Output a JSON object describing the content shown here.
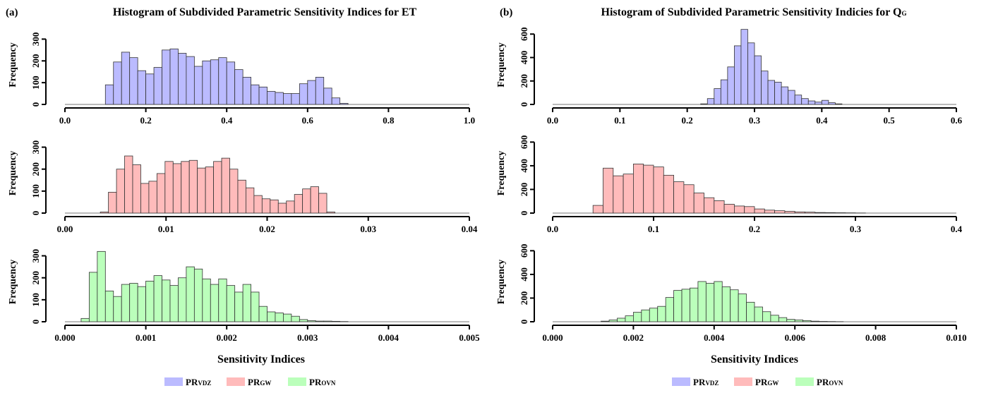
{
  "colors": {
    "series": [
      "#bbbbff",
      "#ffbbbb",
      "#bbffbb"
    ],
    "bar_border": "#333333",
    "axis": "#000000"
  },
  "legend": [
    {
      "main": "PR",
      "sub": "VDZ"
    },
    {
      "main": "PR",
      "sub": "GW"
    },
    {
      "main": "PR",
      "sub": "OVN"
    }
  ],
  "chart_data": [
    {
      "panel": "a",
      "panel_label": "(a)",
      "title": "Histogram of Subdivided Parametric Sensitivity Indices for ET",
      "title_sub": "",
      "xlabel": "Sensitivity Indices",
      "ylabel": "Frequency",
      "type": "bar",
      "subplots": [
        {
          "series": "PRVDZ",
          "xlim": [
            0,
            1.0
          ],
          "ylim": [
            0,
            350
          ],
          "xticks": [
            "0.0",
            "0.2",
            "0.4",
            "0.6",
            "0.8",
            "1.0"
          ],
          "yticks": [
            "0",
            "100",
            "200",
            "300"
          ],
          "bin_start": 0.1,
          "bin_width": 0.02,
          "values": [
            90,
            195,
            240,
            215,
            155,
            140,
            170,
            250,
            255,
            235,
            220,
            175,
            200,
            205,
            215,
            195,
            160,
            125,
            90,
            80,
            60,
            55,
            50,
            50,
            95,
            110,
            125,
            75,
            30,
            5
          ]
        },
        {
          "series": "PRGW",
          "xlim": [
            0,
            0.04
          ],
          "ylim": [
            0,
            350
          ],
          "xticks": [
            "0.00",
            "0.01",
            "0.02",
            "0.03",
            "0.04"
          ],
          "yticks": [
            "0",
            "100",
            "200",
            "300"
          ],
          "bin_start": 0.0035,
          "bin_width": 0.0008,
          "values": [
            5,
            95,
            200,
            260,
            220,
            135,
            145,
            180,
            235,
            225,
            235,
            240,
            205,
            210,
            235,
            250,
            200,
            150,
            115,
            80,
            65,
            60,
            45,
            55,
            85,
            110,
            120,
            90,
            5
          ]
        },
        {
          "series": "PROVN",
          "xlim": [
            0,
            0.005
          ],
          "ylim": [
            0,
            350
          ],
          "xticks": [
            "0.000",
            "0.001",
            "0.002",
            "0.003",
            "0.004",
            "0.005"
          ],
          "yticks": [
            "0",
            "100",
            "200",
            "300"
          ],
          "bin_start": 0.0002,
          "bin_width": 0.0001,
          "values": [
            15,
            225,
            320,
            140,
            115,
            170,
            175,
            160,
            185,
            210,
            190,
            165,
            200,
            250,
            240,
            195,
            170,
            195,
            165,
            135,
            170,
            135,
            70,
            45,
            40,
            35,
            25,
            10,
            5,
            3,
            3,
            2,
            1
          ]
        }
      ]
    },
    {
      "panel": "b",
      "panel_label": "(b)",
      "title": "Histogram of Subdivided Parametric Sensitivity Indicies for Q",
      "title_sub": "G",
      "xlabel": "Sensitivity Indices",
      "ylabel": "Frequency",
      "type": "bar",
      "subplots": [
        {
          "series": "PRVDZ",
          "xlim": [
            0,
            0.6
          ],
          "ylim": [
            0,
            650
          ],
          "xticks": [
            "0.0",
            "0.1",
            "0.2",
            "0.3",
            "0.4",
            "0.5",
            "0.6"
          ],
          "yticks": [
            "0",
            "200",
            "400",
            "600"
          ],
          "bin_start": 0.22,
          "bin_width": 0.01,
          "values": [
            5,
            50,
            135,
            210,
            320,
            500,
            640,
            525,
            415,
            285,
            205,
            190,
            150,
            120,
            80,
            50,
            30,
            20,
            35,
            15,
            5
          ]
        },
        {
          "series": "PRGW",
          "xlim": [
            0,
            0.4
          ],
          "ylim": [
            0,
            650
          ],
          "xticks": [
            "0.0",
            "0.1",
            "0.2",
            "0.3",
            "0.4"
          ],
          "yticks": [
            "0",
            "200",
            "400",
            "600"
          ],
          "bin_start": 0.04,
          "bin_width": 0.01,
          "values": [
            65,
            380,
            315,
            330,
            415,
            405,
            390,
            320,
            265,
            240,
            170,
            130,
            105,
            75,
            60,
            55,
            35,
            25,
            20,
            15,
            10,
            8,
            5,
            4,
            3,
            2,
            1
          ]
        },
        {
          "series": "PROVN",
          "xlim": [
            0,
            0.01
          ],
          "ylim": [
            0,
            650
          ],
          "xticks": [
            "0.000",
            "0.002",
            "0.004",
            "0.006",
            "0.008",
            "0.010"
          ],
          "yticks": [
            "0",
            "200",
            "400",
            "600"
          ],
          "bin_start": 0.0012,
          "bin_width": 0.0002,
          "values": [
            5,
            15,
            30,
            50,
            80,
            100,
            115,
            130,
            205,
            265,
            275,
            285,
            340,
            325,
            340,
            295,
            270,
            235,
            165,
            125,
            85,
            55,
            35,
            20,
            15,
            10,
            5,
            3,
            2,
            1
          ]
        }
      ]
    }
  ]
}
